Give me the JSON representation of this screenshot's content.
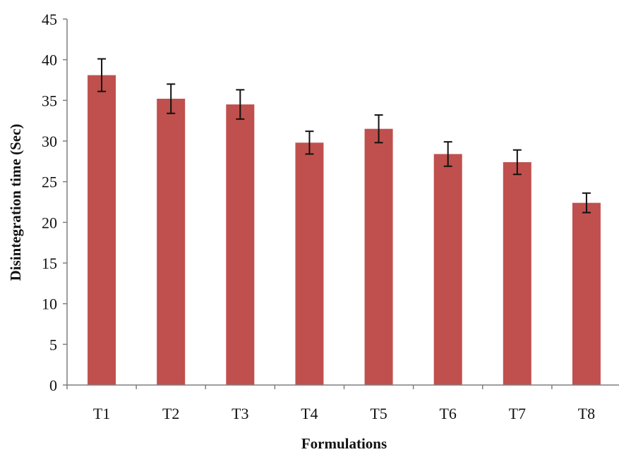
{
  "chart_data": {
    "type": "bar",
    "title": "",
    "xlabel": "Formulations",
    "ylabel": "Disintegration time (Sec)",
    "categories": [
      "T1",
      "T2",
      "T3",
      "T4",
      "T5",
      "T6",
      "T7",
      "T8"
    ],
    "values": [
      38.1,
      35.2,
      34.5,
      29.8,
      31.5,
      28.4,
      27.4,
      22.4
    ],
    "error": [
      2.0,
      1.8,
      1.8,
      1.4,
      1.7,
      1.5,
      1.5,
      1.2
    ],
    "ylim": [
      0,
      45
    ],
    "yticks": [
      "0",
      "5",
      "10",
      "15",
      "20",
      "25",
      "30",
      "35",
      "40",
      "45"
    ],
    "grid": false,
    "legend": "none",
    "bar_color": "#c0504d",
    "axis_color": "#7f7f7f"
  }
}
